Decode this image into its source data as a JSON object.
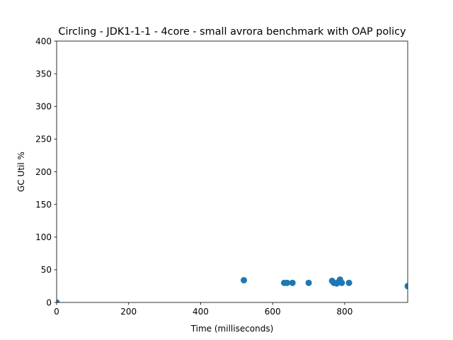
{
  "chart_data": {
    "type": "scatter",
    "title": "Circling - JDK1-1-1 - 4core -  small avrora benchmark with OAP policy",
    "xlabel": "Time (milliseconds)",
    "ylabel": "GC Util %",
    "xlim": [
      0,
      975
    ],
    "ylim": [
      0,
      400
    ],
    "x_ticks": [
      0,
      200,
      400,
      600,
      800
    ],
    "y_ticks": [
      0,
      50,
      100,
      150,
      200,
      250,
      300,
      350,
      400
    ],
    "grid": false,
    "legend": "none",
    "marker_color": "#1f77b4",
    "series": [
      {
        "points": [
          [
            0,
            0
          ],
          [
            520,
            34
          ],
          [
            632,
            30
          ],
          [
            640,
            30
          ],
          [
            655,
            30
          ],
          [
            700,
            30
          ],
          [
            765,
            33
          ],
          [
            770,
            30
          ],
          [
            778,
            29
          ],
          [
            782,
            31
          ],
          [
            787,
            35
          ],
          [
            792,
            30
          ],
          [
            812,
            30
          ],
          [
            975,
            25
          ]
        ]
      }
    ]
  }
}
